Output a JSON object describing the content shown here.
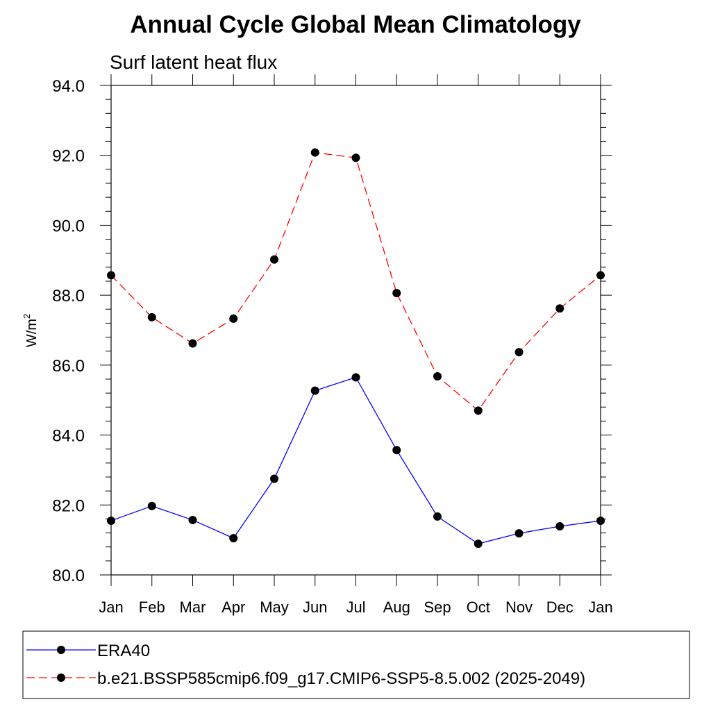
{
  "chart_data": {
    "type": "line",
    "title": "Annual Cycle Global Mean Climatology",
    "subtitle": "Surf latent heat flux",
    "xlabel": "",
    "ylabel": "W/m",
    "ylabel_superscript": "2",
    "ylim": [
      80.0,
      94.0
    ],
    "yticks": [
      "80.0",
      "82.0",
      "84.0",
      "86.0",
      "88.0",
      "90.0",
      "92.0",
      "94.0"
    ],
    "categories": [
      "Jan",
      "Feb",
      "Mar",
      "Apr",
      "May",
      "Jun",
      "Jul",
      "Aug",
      "Sep",
      "Oct",
      "Nov",
      "Dec",
      "Jan"
    ],
    "grid": false,
    "legend_position": "bottom",
    "series": [
      {
        "name": "ERA40",
        "color": "#0000ff",
        "line_style": "solid",
        "marker": "filled-circle",
        "values": [
          81.55,
          81.97,
          81.57,
          81.05,
          82.75,
          85.27,
          85.65,
          83.57,
          81.67,
          80.89,
          81.19,
          81.39,
          81.55
        ]
      },
      {
        "name": "b.e21.BSSP585cmip6.f09_g17.CMIP6-SSP5-8.5.002 (2025-2049)",
        "color": "#ff0000",
        "line_style": "dashed",
        "marker": "filled-circle",
        "values": [
          88.57,
          87.37,
          86.62,
          87.33,
          89.02,
          92.08,
          91.93,
          88.06,
          85.68,
          84.7,
          86.37,
          87.62,
          88.57
        ]
      }
    ]
  }
}
